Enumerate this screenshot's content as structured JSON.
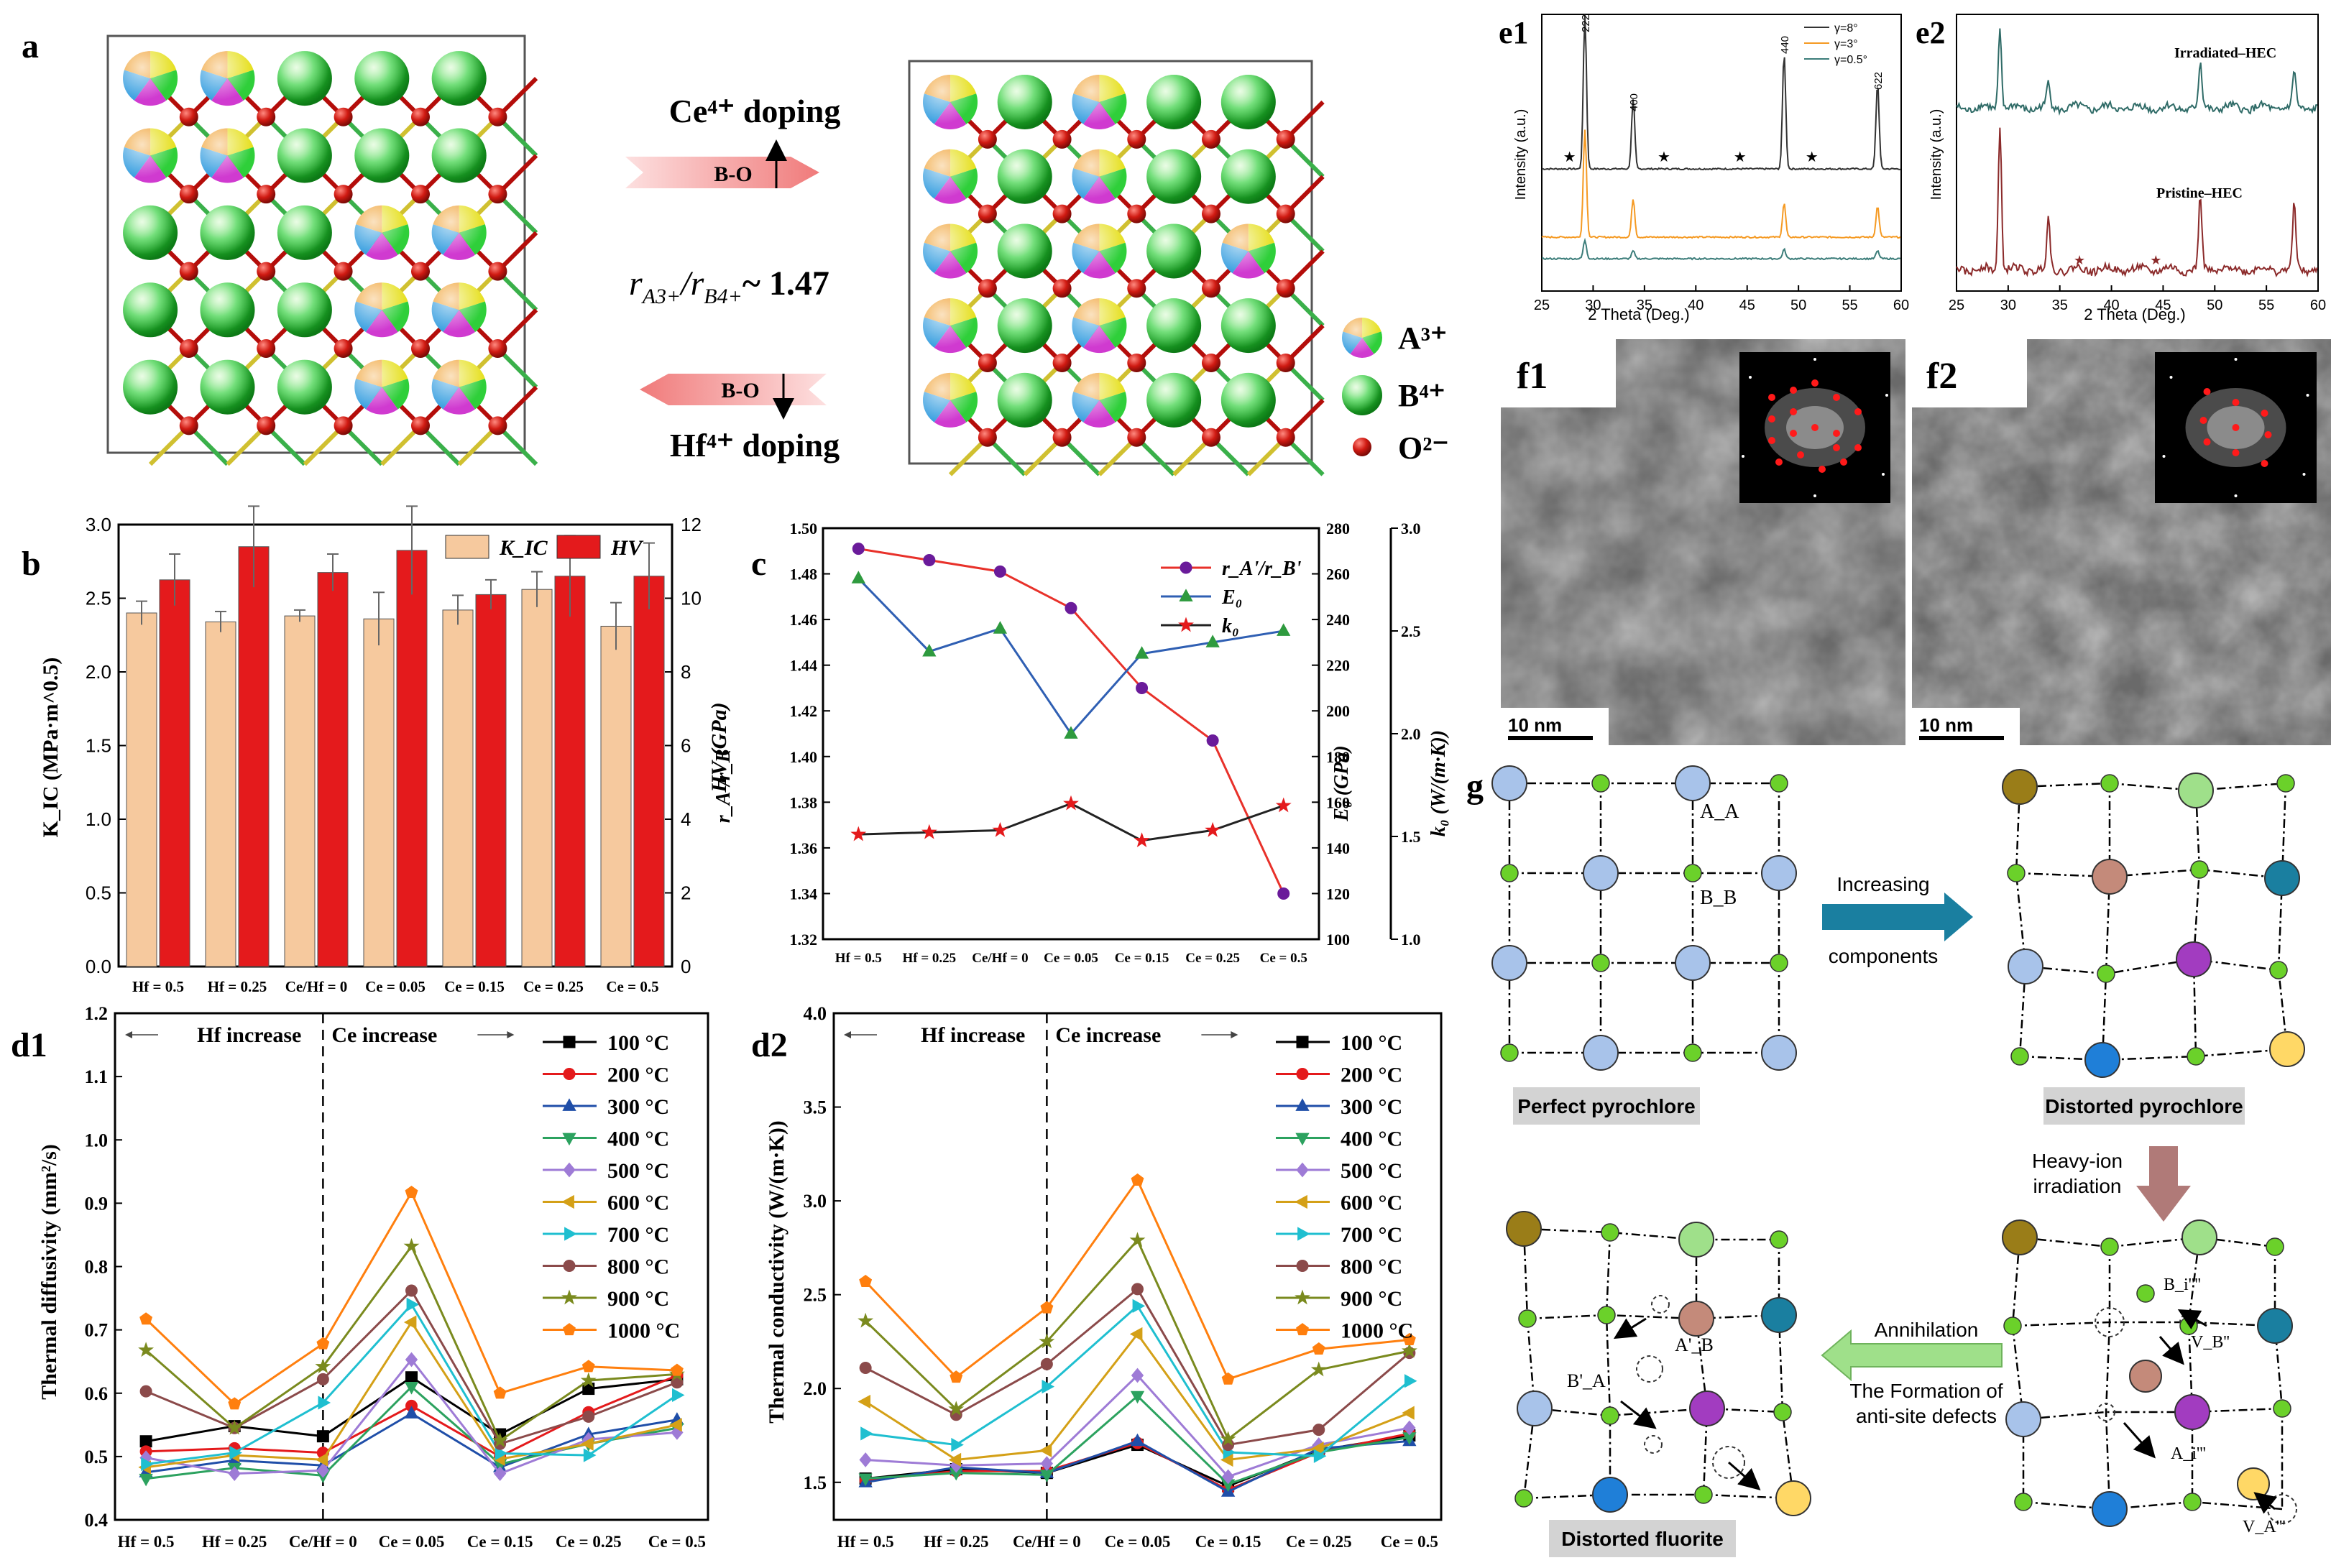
{
  "panels": {
    "a": {
      "label": "a",
      "ce_doping": "Ce⁴⁺ doping",
      "hf_doping": "Hf⁴⁺ doping",
      "bond_label": "B-O",
      "ratio_text": "r",
      "ratio_sub_a": "A3+",
      "ratio_sub_b": "B4+",
      "ratio_value": "~ 1.47",
      "legend": [
        {
          "text": "A³⁺",
          "kind": "A"
        },
        {
          "text": "B⁴⁺",
          "kind": "B"
        },
        {
          "text": "O²⁻",
          "kind": "O"
        }
      ]
    },
    "b": {
      "label": "b",
      "ylabel_left": "K_IC  (MPa·m^0.5)",
      "ylabel_right": "HV (GPa)",
      "legend_kic": "K_IC",
      "legend_hv": "HV"
    },
    "c": {
      "label": "c",
      "ylabel_left": "r_A'/r_B'",
      "ylabel_mid": "E₀ (GPa)",
      "ylabel_right": "k₀ (W/(m·K))",
      "legend": [
        "r_A'/r_B'",
        "E₀",
        "k₀"
      ]
    },
    "d1": {
      "label": "d1",
      "ylabel": "Thermal diffusivity (mm²/s)",
      "hf_text": "Hf increase",
      "ce_text": "Ce increase"
    },
    "d2": {
      "label": "d2",
      "ylabel": "Thermal conductivity (W/(m·K))",
      "hf_text": "Hf increase",
      "ce_text": "Ce increase"
    },
    "e1": {
      "label": "e1",
      "xlabel": "2 Theta (Deg.)",
      "ylabel": "Intensity (a.u.)",
      "legend": [
        "γ=8°",
        "γ=3°",
        "γ=0.5°"
      ],
      "peaks": [
        "222",
        "400",
        "440",
        "622"
      ]
    },
    "e2": {
      "label": "e2",
      "xlabel": "2 Theta (Deg.)",
      "ylabel": "Intensity (a.u.)",
      "top_label": "Irradiated–HEC",
      "bottom_label": "Pristine–HEC"
    },
    "f1": {
      "label": "f1",
      "scale": "10 nm"
    },
    "f2": {
      "label": "f2",
      "scale": "10 nm"
    },
    "g": {
      "label": "g",
      "perfect": "Perfect pyrochlore",
      "distorted_pyro": "Distorted pyrochlore",
      "distorted_fluorite": "Distorted fluorite",
      "increasing": "Increasing",
      "components": "components",
      "heavy_ion": "Heavy-ion",
      "irradiation": "irradiation",
      "annihilation": "Annihilation",
      "formation1": "The Formation of",
      "formation2": "anti-site defects",
      "aa": "A_A",
      "bb": "B_B",
      "ab": "A'_B",
      "ba": "B'_A",
      "bi": "B_i''''",
      "vb": "V_B''",
      "ai": "A_i'''",
      "va": "V_A'''"
    }
  },
  "chart_data": [
    {
      "type": "bar",
      "title": "",
      "categories": [
        "Hf = 0.5",
        "Hf = 0.25",
        "Ce/Hf = 0",
        "Ce = 0.05",
        "Ce = 0.15",
        "Ce = 0.25",
        "Ce = 0.5"
      ],
      "series": [
        {
          "name": "K_IC",
          "values": [
            2.4,
            2.34,
            2.38,
            2.36,
            2.42,
            2.56,
            2.31
          ],
          "errors": [
            0.08,
            0.07,
            0.04,
            0.18,
            0.1,
            0.12,
            0.16
          ],
          "axis": "left",
          "color": "#f6c99e"
        },
        {
          "name": "HV",
          "values": [
            10.5,
            11.4,
            10.7,
            11.3,
            10.1,
            10.6,
            10.6
          ],
          "errors": [
            0.7,
            1.1,
            0.5,
            1.2,
            0.4,
            1.1,
            0.9
          ],
          "axis": "right",
          "color": "#e41a1c"
        }
      ],
      "ylim_left": [
        0,
        3.0
      ],
      "yticks_left": [
        "0.0",
        "0.5",
        "1.0",
        "1.5",
        "2.0",
        "2.5",
        "3.0"
      ],
      "ylim_right": [
        0,
        12
      ],
      "yticks_right": [
        "0",
        "2",
        "4",
        "6",
        "8",
        "10",
        "12"
      ]
    },
    {
      "type": "line",
      "categories": [
        "Hf = 0.5",
        "Hf = 0.25",
        "Ce/Hf = 0",
        "Ce = 0.05",
        "Ce = 0.15",
        "Ce = 0.25",
        "Ce = 0.5"
      ],
      "series": [
        {
          "name": "r_A'/r_B'",
          "values": [
            1.491,
            1.486,
            1.481,
            1.465,
            1.43,
            1.407,
            1.34
          ],
          "axis": "left",
          "color": "#e8312a",
          "marker": "circle",
          "marker_color": "#6a1b9a"
        },
        {
          "name": "E₀",
          "values": [
            258,
            226,
            236,
            190,
            225,
            230,
            235
          ],
          "axis": "mid",
          "color": "#2f5fb3",
          "marker": "triangle",
          "marker_color": "#2e9a3e"
        },
        {
          "name": "k₀",
          "values": [
            1.51,
            1.52,
            1.53,
            1.66,
            1.48,
            1.53,
            1.65
          ],
          "axis": "right",
          "color": "#222222",
          "marker": "star",
          "marker_color": "#e41a1c"
        }
      ],
      "ylim_left": [
        1.32,
        1.5
      ],
      "yticks_left": [
        "1.32",
        "1.34",
        "1.36",
        "1.38",
        "1.40",
        "1.42",
        "1.44",
        "1.46",
        "1.48",
        "1.50"
      ],
      "ylim_mid": [
        100,
        280
      ],
      "yticks_mid": [
        "100",
        "120",
        "140",
        "160",
        "180",
        "200",
        "220",
        "240",
        "260",
        "280"
      ],
      "ylim_right": [
        1.0,
        3.0
      ],
      "yticks_right": [
        "1.0",
        "1.5",
        "2.0",
        "2.5",
        "3.0"
      ]
    },
    {
      "type": "line",
      "categories": [
        "Hf = 0.5",
        "Hf = 0.25",
        "Ce/Hf = 0",
        "Ce = 0.05",
        "Ce = 0.15",
        "Ce = 0.25",
        "Ce = 0.5"
      ],
      "ylim": [
        0.4,
        1.2
      ],
      "yticks": [
        "0.4",
        "0.5",
        "0.6",
        "0.7",
        "0.8",
        "0.9",
        "1.0",
        "1.1",
        "1.2"
      ],
      "series": [
        {
          "name": "100 °C",
          "color": "#000000",
          "marker": "square",
          "values": [
            0.524,
            0.548,
            0.532,
            0.625,
            0.535,
            0.607,
            0.622
          ]
        },
        {
          "name": "200 °C",
          "color": "#e41a1c",
          "marker": "circle",
          "values": [
            0.508,
            0.513,
            0.506,
            0.58,
            0.5,
            0.57,
            0.628
          ]
        },
        {
          "name": "300 °C",
          "color": "#1f4ea8",
          "marker": "triangle",
          "values": [
            0.475,
            0.494,
            0.486,
            0.568,
            0.483,
            0.535,
            0.558
          ]
        },
        {
          "name": "400 °C",
          "color": "#2ca25f",
          "marker": "triangle-down",
          "values": [
            0.465,
            0.482,
            0.47,
            0.61,
            0.488,
            0.52,
            0.545
          ]
        },
        {
          "name": "500 °C",
          "color": "#9e7bd6",
          "marker": "diamond",
          "values": [
            0.498,
            0.473,
            0.478,
            0.653,
            0.473,
            0.527,
            0.538
          ]
        },
        {
          "name": "600 °C",
          "color": "#d4a017",
          "marker": "triangle-left",
          "values": [
            0.483,
            0.502,
            0.495,
            0.712,
            0.496,
            0.52,
            0.55
          ]
        },
        {
          "name": "700 °C",
          "color": "#1fbfd0",
          "marker": "triangle-right",
          "values": [
            0.488,
            0.506,
            0.585,
            0.74,
            0.505,
            0.502,
            0.597
          ]
        },
        {
          "name": "800 °C",
          "color": "#8b4a4a",
          "marker": "circle",
          "values": [
            0.603,
            0.545,
            0.622,
            0.762,
            0.52,
            0.563,
            0.617
          ]
        },
        {
          "name": "900 °C",
          "color": "#7a8a1e",
          "marker": "star",
          "values": [
            0.668,
            0.545,
            0.642,
            0.832,
            0.525,
            0.62,
            0.63
          ]
        },
        {
          "name": "1000 °C",
          "color": "#ff7f0e",
          "marker": "pentagon",
          "values": [
            0.717,
            0.583,
            0.678,
            0.917,
            0.6,
            0.642,
            0.636
          ]
        }
      ]
    },
    {
      "type": "line",
      "categories": [
        "Hf = 0.5",
        "Hf = 0.25",
        "Ce/Hf = 0",
        "Ce = 0.05",
        "Ce = 0.15",
        "Ce = 0.25",
        "Ce = 0.5"
      ],
      "ylim": [
        1.3,
        4.0
      ],
      "yticks": [
        "1.5",
        "2.0",
        "2.5",
        "3.0",
        "3.5",
        "4.0"
      ],
      "series": [
        {
          "name": "100 °C",
          "color": "#000000",
          "marker": "square",
          "values": [
            1.52,
            1.57,
            1.55,
            1.7,
            1.48,
            1.67,
            1.75
          ]
        },
        {
          "name": "200 °C",
          "color": "#e41a1c",
          "marker": "circle",
          "values": [
            1.51,
            1.56,
            1.56,
            1.71,
            1.46,
            1.66,
            1.76
          ]
        },
        {
          "name": "300 °C",
          "color": "#1f4ea8",
          "marker": "triangle",
          "values": [
            1.5,
            1.58,
            1.55,
            1.72,
            1.45,
            1.68,
            1.72
          ]
        },
        {
          "name": "400 °C",
          "color": "#2ca25f",
          "marker": "triangle-down",
          "values": [
            1.52,
            1.55,
            1.54,
            1.96,
            1.49,
            1.66,
            1.74
          ]
        },
        {
          "name": "500 °C",
          "color": "#9e7bd6",
          "marker": "diamond",
          "values": [
            1.62,
            1.59,
            1.6,
            2.07,
            1.53,
            1.7,
            1.79
          ]
        },
        {
          "name": "600 °C",
          "color": "#d4a017",
          "marker": "triangle-left",
          "values": [
            1.93,
            1.62,
            1.67,
            2.29,
            1.62,
            1.68,
            1.87
          ]
        },
        {
          "name": "700 °C",
          "color": "#1fbfd0",
          "marker": "triangle-right",
          "values": [
            1.76,
            1.7,
            2.01,
            2.44,
            1.66,
            1.64,
            2.04
          ]
        },
        {
          "name": "800 °C",
          "color": "#8b4a4a",
          "marker": "circle",
          "values": [
            2.11,
            1.86,
            2.13,
            2.53,
            1.7,
            1.78,
            2.19
          ]
        },
        {
          "name": "900 °C",
          "color": "#7a8a1e",
          "marker": "star",
          "values": [
            2.36,
            1.89,
            2.25,
            2.79,
            1.73,
            2.1,
            2.2
          ]
        },
        {
          "name": "1000 °C",
          "color": "#ff7f0e",
          "marker": "pentagon",
          "values": [
            2.57,
            2.06,
            2.43,
            3.11,
            2.05,
            2.21,
            2.26
          ]
        }
      ]
    },
    {
      "type": "line",
      "title": "e1",
      "xlim": [
        25,
        60
      ],
      "xticks": [
        "25",
        "30",
        "35",
        "40",
        "45",
        "50",
        "55",
        "60"
      ],
      "series": [
        {
          "name": "γ=8°",
          "color": "#333333",
          "peaks": [
            [
              29.2,
              1.0
            ],
            [
              33.9,
              0.45
            ],
            [
              48.6,
              0.75
            ],
            [
              57.7,
              0.55
            ]
          ]
        },
        {
          "name": "γ=3°",
          "color": "#f59a23",
          "peaks": [
            [
              29.2,
              0.7
            ],
            [
              33.9,
              0.25
            ],
            [
              48.6,
              0.22
            ],
            [
              57.7,
              0.2
            ]
          ]
        },
        {
          "name": "γ=0.5°",
          "color": "#3c7d7a",
          "peaks": [
            [
              29.2,
              0.12
            ],
            [
              33.9,
              0.05
            ],
            [
              48.6,
              0.06
            ],
            [
              57.7,
              0.05
            ]
          ]
        }
      ]
    },
    {
      "type": "line",
      "title": "e2",
      "xlim": [
        25,
        60
      ],
      "xticks": [
        "25",
        "30",
        "35",
        "40",
        "45",
        "50",
        "55",
        "60"
      ],
      "series": [
        {
          "name": "Irradiated–HEC",
          "color": "#2f6b67",
          "peaks": [
            [
              29.2,
              0.55
            ],
            [
              33.9,
              0.18
            ],
            [
              48.6,
              0.3
            ],
            [
              57.7,
              0.25
            ]
          ]
        },
        {
          "name": "Pristine–HEC",
          "color": "#8b2a2a",
          "peaks": [
            [
              29.2,
              1.0
            ],
            [
              33.9,
              0.35
            ],
            [
              48.6,
              0.5
            ],
            [
              57.7,
              0.45
            ]
          ]
        }
      ]
    }
  ]
}
